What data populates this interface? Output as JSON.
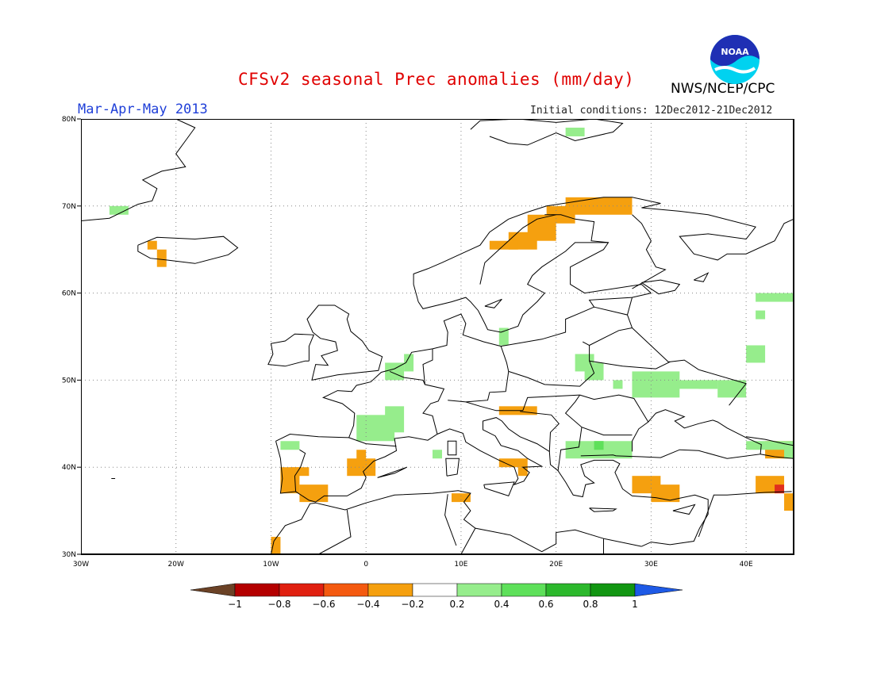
{
  "header": {
    "title": "CFSv2 seasonal Prec anomalies (mm/day)",
    "season": "Mar-Apr-May 2013",
    "initial_conditions": "Initial conditions: 12Dec2012-21Dec2012",
    "agency": "NWS/NCEP/CPC",
    "logo_text": "NOAA",
    "logo_icon": "noaa-logo-icon"
  },
  "map": {
    "region": "Europe",
    "lon_range": [
      -30,
      45
    ],
    "lat_range": [
      30,
      80
    ],
    "lat_labels": [
      "30N",
      "40N",
      "50N",
      "60N",
      "70N",
      "80N"
    ],
    "lon_labels": [
      "30W",
      "20W",
      "10W",
      "0",
      "10E",
      "20E",
      "30E",
      "40E"
    ],
    "grid": "dotted",
    "colors": {
      "dry_moderate": "#f5a00f",
      "dry_strong": "#e0301e",
      "wet_light": "#96ed8c",
      "wet_moderate": "#5ee05a",
      "coast": "#000000"
    }
  },
  "colorbar": {
    "labels": [
      "-1",
      "-0.8",
      "-0.6",
      "-0.4",
      "-0.2",
      "0.2",
      "0.4",
      "0.6",
      "0.8",
      "1"
    ],
    "colors": [
      "#6b4226",
      "#b40000",
      "#e02010",
      "#f45a10",
      "#f5a00f",
      "#ffffff",
      "#96ed8c",
      "#5ee05a",
      "#2cb82c",
      "#129612",
      "#1e5ae6"
    ]
  }
}
